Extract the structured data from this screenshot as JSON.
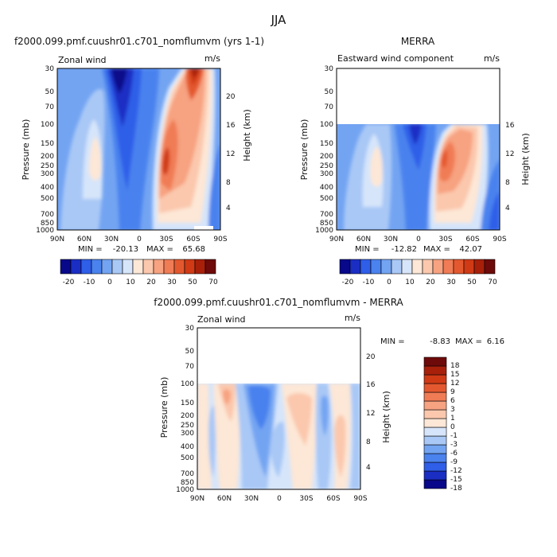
{
  "figure_title": "JJA",
  "chart_data": [
    {
      "type": "heatmap",
      "title": "f2000.099.pmf.cuushr01.c701_nomflumvm (yrs 1-1)",
      "left_label": "Zonal wind",
      "units": "m/s",
      "ylabel": "Pressure (mb)",
      "ylabel_right": "Height (km)",
      "x_ticks": [
        "90N",
        "60N",
        "30N",
        "0",
        "30S",
        "60S",
        "90S"
      ],
      "y_ticks": [
        "30",
        "50",
        "70",
        "100",
        "150",
        "200",
        "250",
        "300",
        "400",
        "500",
        "700",
        "850",
        "1000"
      ],
      "right_ticks": [
        "20",
        "16",
        "12",
        "8",
        "4"
      ],
      "min_label": "MIN =",
      "min_value": "-20.13",
      "max_label": "MAX =",
      "max_value": "65.68",
      "colorbar_levels": [
        -25,
        -20,
        -15,
        -10,
        -5,
        0,
        5,
        10,
        15,
        20,
        25,
        30,
        40,
        50,
        60,
        70
      ],
      "colorbar_tick_labels": [
        "-20",
        "-10",
        "0",
        "10",
        "20",
        "30",
        "50",
        "70"
      ],
      "colorbar_orientation": "horizontal",
      "data_top_pressure": 30
    },
    {
      "type": "heatmap",
      "title": "MERRA",
      "left_label": "Eastward wind component",
      "units": "m/s",
      "ylabel": "Pressure (mb)",
      "ylabel_right": "Height (km)",
      "x_ticks": [
        "90N",
        "60N",
        "30N",
        "0",
        "30S",
        "60S",
        "90S"
      ],
      "y_ticks": [
        "30",
        "50",
        "70",
        "100",
        "150",
        "200",
        "250",
        "300",
        "400",
        "500",
        "700",
        "850",
        "1000"
      ],
      "right_ticks": [
        "16",
        "12",
        "8",
        "4"
      ],
      "min_label": "MIN =",
      "min_value": "-12.82",
      "max_label": "MAX =",
      "max_value": "42.07",
      "colorbar_levels": [
        -25,
        -20,
        -15,
        -10,
        -5,
        0,
        5,
        10,
        15,
        20,
        25,
        30,
        40,
        50,
        60,
        70
      ],
      "colorbar_tick_labels": [
        "-20",
        "-10",
        "0",
        "10",
        "20",
        "30",
        "50",
        "70"
      ],
      "colorbar_orientation": "horizontal",
      "data_top_pressure": 100
    },
    {
      "type": "heatmap",
      "title": "f2000.099.pmf.cuushr01.c701_nomflumvm - MERRA",
      "left_label": "Zonal wind",
      "units": "m/s",
      "ylabel": "Pressure (mb)",
      "ylabel_right": "Height (km)",
      "x_ticks": [
        "90N",
        "60N",
        "30N",
        "0",
        "30S",
        "60S",
        "90S"
      ],
      "y_ticks": [
        "30",
        "50",
        "70",
        "100",
        "150",
        "200",
        "250",
        "300",
        "400",
        "500",
        "700",
        "850",
        "1000"
      ],
      "right_ticks": [
        "20",
        "16",
        "12",
        "8",
        "4"
      ],
      "min_label": "MIN =",
      "min_value": "-8.83",
      "max_label": "MAX =",
      "max_value": "6.16",
      "colorbar_levels": [
        -21,
        -18,
        -15,
        -12,
        -9,
        -6,
        -3,
        -1,
        0,
        1,
        3,
        6,
        9,
        12,
        15,
        18,
        21
      ],
      "colorbar_tick_labels": [
        "18",
        "15",
        "12",
        "9",
        "6",
        "3",
        "1",
        "0",
        "-1",
        "-3",
        "-6",
        "-9",
        "-12",
        "-15",
        "-18"
      ],
      "colorbar_orientation": "vertical",
      "data_top_pressure": 100
    }
  ],
  "colors": {
    "wind_palette": [
      "#08088a",
      "#1a2ec4",
      "#2f5ee8",
      "#4a82ee",
      "#73a4f2",
      "#a9c8f6",
      "#d6e5fa",
      "#fde7d6",
      "#fbc8ad",
      "#f7a280",
      "#f07c55",
      "#e4582f",
      "#d03a15",
      "#a8200a",
      "#6e0a0a"
    ],
    "diff_palette": [
      "#08088a",
      "#1a2ec4",
      "#2f5ee8",
      "#4a82ee",
      "#73a4f2",
      "#a9c8f6",
      "#d6e5fa",
      "#fde7d6",
      "#fbc8ad",
      "#f7a280",
      "#f07c55",
      "#e4582f",
      "#d03a15",
      "#a8200a",
      "#6e0a0a"
    ]
  }
}
